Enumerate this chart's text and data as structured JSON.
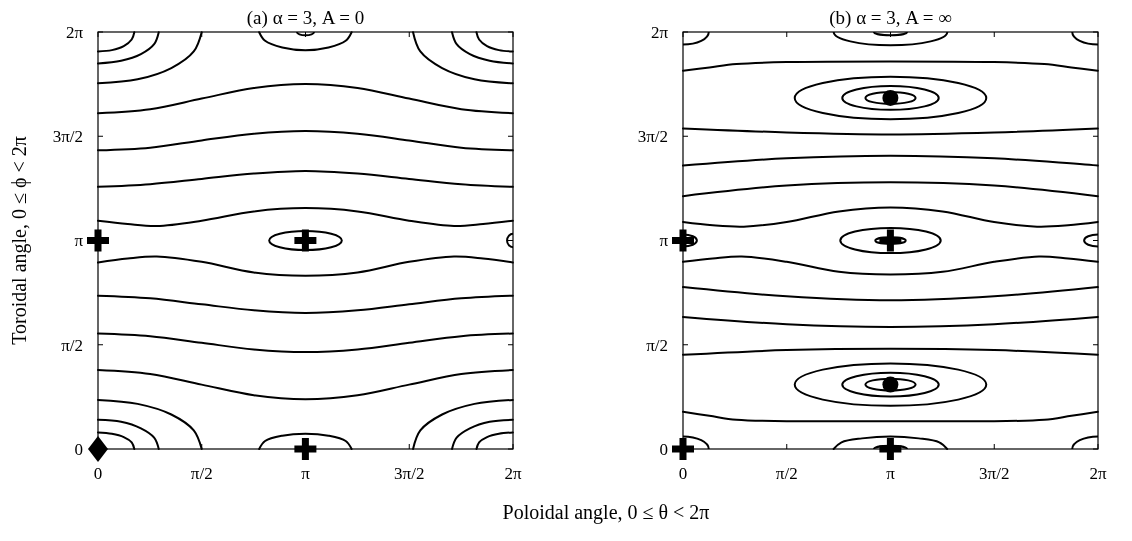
{
  "chart_data": [
    {
      "type": "line",
      "title": "(a) α = 3, A = 0",
      "ylabel": "Toroidal angle, 0 ≤ ϕ < 2π",
      "xlabel": "Poloidal angle, 0 ≤ θ < 2π",
      "xlim": [
        0,
        6.2832
      ],
      "ylim": [
        0,
        6.2832
      ],
      "xticks": [
        0,
        {
          "value": 1.5708,
          "label": "π/2"
        },
        {
          "value": 3.1416,
          "label": "π"
        },
        {
          "value": 4.7124,
          "label": "3π/2"
        },
        {
          "value": 6.2832,
          "label": "2π"
        }
      ],
      "yticks": [
        0,
        {
          "value": 1.5708,
          "label": "π/2"
        },
        {
          "value": 3.1416,
          "label": "π"
        },
        {
          "value": 4.7124,
          "label": "3π/2"
        },
        {
          "value": 6.2832,
          "label": "2π"
        }
      ],
      "line_style": "solid",
      "series": [
        {
          "color": "#000000",
          "x": [
            0,
            0.79,
            1.57,
            2.36,
            3.14,
            3.93,
            4.71,
            5.5,
            6.28
          ],
          "values": [
            5.06,
            5.12,
            5.28,
            5.44,
            5.5,
            5.44,
            5.28,
            5.12,
            5.06
          ]
        },
        {
          "color": "#000000",
          "x": [
            0,
            0.79,
            1.57,
            2.36,
            3.14,
            3.93,
            4.71,
            5.5,
            6.28
          ],
          "values": [
            4.5,
            4.54,
            4.65,
            4.75,
            4.79,
            4.75,
            4.65,
            4.54,
            4.5
          ]
        },
        {
          "color": "#000000",
          "x": [
            0,
            0.79,
            1.57,
            2.36,
            3.14,
            3.93,
            4.71,
            5.5,
            6.28
          ],
          "values": [
            3.95,
            3.99,
            4.07,
            4.15,
            4.19,
            4.15,
            4.07,
            3.99,
            3.95
          ]
        },
        {
          "color": "#000000",
          "x": [
            0,
            0.45,
            0.89,
            1.57,
            2.36,
            3.14,
            3.93,
            4.71,
            5.39,
            5.83,
            6.28
          ],
          "values": [
            3.44,
            3.39,
            3.36,
            3.44,
            3.58,
            3.63,
            3.58,
            3.44,
            3.36,
            3.39,
            3.44
          ]
        },
        {
          "color": "#000000",
          "x": [
            0,
            0.45,
            0.89,
            1.57,
            2.36,
            3.14,
            3.93,
            4.71,
            5.39,
            5.83,
            6.28
          ],
          "values": [
            2.81,
            2.87,
            2.9,
            2.82,
            2.66,
            2.61,
            2.66,
            2.82,
            2.9,
            2.87,
            2.81
          ]
        },
        {
          "color": "#000000",
          "x": [
            0,
            0.79,
            1.57,
            2.36,
            3.14,
            3.93,
            4.71,
            5.5,
            6.28
          ],
          "values": [
            2.31,
            2.27,
            2.18,
            2.09,
            2.05,
            2.09,
            2.18,
            2.27,
            2.31
          ]
        },
        {
          "color": "#000000",
          "x": [
            0,
            0.79,
            1.57,
            2.36,
            3.14,
            3.93,
            4.71,
            5.5,
            6.28
          ],
          "values": [
            1.74,
            1.7,
            1.6,
            1.5,
            1.46,
            1.5,
            1.6,
            1.7,
            1.74
          ]
        },
        {
          "color": "#000000",
          "x": [
            0,
            0.79,
            1.57,
            2.36,
            3.14,
            3.93,
            4.71,
            5.5,
            6.28
          ],
          "values": [
            1.19,
            1.13,
            0.97,
            0.81,
            0.75,
            0.81,
            0.97,
            1.13,
            1.19
          ]
        },
        {
          "color": "#000000",
          "x": [
            0,
            0.6,
            1.11,
            1.45,
            1.57
          ],
          "values": [
            5.51,
            5.57,
            5.74,
            5.99,
            6.28
          ]
        },
        {
          "color": "#000000",
          "x": [
            0,
            0.35,
            0.65,
            0.85,
            0.92
          ],
          "values": [
            5.81,
            5.85,
            5.95,
            6.1,
            6.28
          ]
        },
        {
          "color": "#000000",
          "x": [
            0,
            0.21,
            0.39,
            0.51,
            0.55
          ],
          "values": [
            5.99,
            6.01,
            6.07,
            6.17,
            6.28
          ]
        },
        {
          "color": "#000000",
          "x": [
            4.77,
            4.88,
            5.21,
            5.7,
            6.28
          ],
          "values": [
            6.28,
            5.99,
            5.74,
            5.57,
            5.51
          ]
        },
        {
          "color": "#000000",
          "x": [
            5.36,
            5.43,
            5.63,
            5.93,
            6.28
          ],
          "values": [
            6.28,
            6.1,
            5.95,
            5.85,
            5.81
          ]
        },
        {
          "color": "#000000",
          "x": [
            5.73,
            5.77,
            5.89,
            6.07,
            6.28
          ],
          "values": [
            6.28,
            6.17,
            6.07,
            6.01,
            5.99
          ]
        },
        {
          "color": "#000000",
          "x": [
            0,
            0.6,
            1.11,
            1.45,
            1.57
          ],
          "values": [
            0.74,
            0.68,
            0.52,
            0.28,
            0
          ]
        },
        {
          "color": "#000000",
          "x": [
            0,
            0.35,
            0.65,
            0.85,
            0.92
          ],
          "values": [
            0.44,
            0.41,
            0.31,
            0.17,
            0
          ]
        },
        {
          "color": "#000000",
          "x": [
            0,
            0.21,
            0.39,
            0.51,
            0.55
          ],
          "values": [
            0.25,
            0.23,
            0.18,
            0.1,
            0
          ]
        },
        {
          "color": "#000000",
          "x": [
            4.77,
            4.88,
            5.21,
            5.7,
            6.28
          ],
          "values": [
            0,
            0.28,
            0.52,
            0.68,
            0.74
          ]
        },
        {
          "color": "#000000",
          "x": [
            5.36,
            5.43,
            5.63,
            5.93,
            6.28
          ],
          "values": [
            0,
            0.17,
            0.31,
            0.41,
            0.44
          ]
        },
        {
          "color": "#000000",
          "x": [
            5.73,
            5.77,
            5.89,
            6.07,
            6.28
          ],
          "values": [
            0,
            0.1,
            0.18,
            0.23,
            0.25
          ]
        },
        {
          "color": "#000000",
          "x": [
            2.44,
            2.53,
            2.79,
            3.14,
            3.49,
            3.75,
            3.84
          ],
          "values": [
            6.28,
            6.15,
            6.05,
            6.01,
            6.05,
            6.15,
            6.28
          ]
        },
        {
          "color": "#000000",
          "x": [
            2.44,
            2.53,
            2.79,
            3.14,
            3.49,
            3.75,
            3.84
          ],
          "values": [
            0,
            0.12,
            0.2,
            0.23,
            0.2,
            0.12,
            0
          ]
        },
        {
          "type": "scatter",
          "color": "#000000",
          "marker": "cross",
          "x": [
            0,
            3.14,
            3.14
          ],
          "values": [
            3.14,
            3.14,
            0
          ]
        },
        {
          "type": "scatter",
          "color": "#000000",
          "marker": "diamond",
          "x": [
            0
          ],
          "values": [
            0
          ]
        }
      ]
    },
    {
      "type": "line",
      "title": "(b) α = 3, A = ∞",
      "xlim": [
        0,
        6.2832
      ],
      "ylim": [
        0,
        6.2832
      ],
      "xticks": [
        0,
        {
          "value": 1.5708,
          "label": "π/2"
        },
        {
          "value": 3.1416,
          "label": "π"
        },
        {
          "value": 4.7124,
          "label": "3π/2"
        },
        {
          "value": 6.2832,
          "label": "2π"
        }
      ],
      "yticks": [
        0,
        {
          "value": 1.5708,
          "label": "π/2"
        },
        {
          "value": 3.1416,
          "label": "π"
        },
        {
          "value": 4.7124,
          "label": "3π/2"
        },
        {
          "value": 6.2832,
          "label": "2π"
        }
      ],
      "line_style": "solid",
      "series": [
        {
          "color": "#000000",
          "x": [
            0,
            0.4,
            0.81,
            1.57,
            3.14,
            4.71,
            5.47,
            5.88,
            6.28
          ],
          "values": [
            5.7,
            5.75,
            5.8,
            5.83,
            5.84,
            5.83,
            5.8,
            5.75,
            5.7
          ]
        },
        {
          "color": "#000000",
          "x": [
            0,
            1.57,
            3.14,
            4.71,
            6.28
          ],
          "values": [
            4.83,
            4.77,
            4.74,
            4.77,
            4.83
          ]
        },
        {
          "color": "#000000",
          "x": [
            0,
            1.57,
            3.14,
            4.71,
            6.28
          ],
          "values": [
            4.27,
            4.38,
            4.42,
            4.38,
            4.27
          ]
        },
        {
          "color": "#000000",
          "x": [
            0,
            1.57,
            3.14,
            4.71,
            6.28
          ],
          "values": [
            3.81,
            3.97,
            4.02,
            3.97,
            3.81
          ]
        },
        {
          "color": "#000000",
          "x": [
            0,
            0.45,
            0.92,
            1.57,
            2.36,
            3.14,
            3.93,
            4.71,
            5.36,
            5.83,
            6.28
          ],
          "values": [
            3.42,
            3.37,
            3.35,
            3.42,
            3.58,
            3.64,
            3.58,
            3.42,
            3.35,
            3.37,
            3.42
          ]
        },
        {
          "color": "#000000",
          "x": [
            0,
            0.45,
            0.89,
            1.57,
            2.36,
            3.14,
            3.93,
            4.71,
            5.39,
            5.83,
            6.28
          ],
          "values": [
            2.82,
            2.87,
            2.9,
            2.82,
            2.67,
            2.63,
            2.67,
            2.82,
            2.9,
            2.87,
            2.82
          ]
        },
        {
          "color": "#000000",
          "x": [
            0,
            1.57,
            3.14,
            4.71,
            6.28
          ],
          "values": [
            2.44,
            2.3,
            2.24,
            2.3,
            2.44
          ]
        },
        {
          "color": "#000000",
          "x": [
            0,
            1.57,
            3.14,
            4.71,
            6.28
          ],
          "values": [
            1.99,
            1.88,
            1.84,
            1.88,
            1.99
          ]
        },
        {
          "color": "#000000",
          "x": [
            0,
            1.57,
            3.14,
            4.71,
            6.28
          ],
          "values": [
            1.42,
            1.49,
            1.51,
            1.49,
            1.42
          ]
        },
        {
          "color": "#000000",
          "x": [
            0,
            0.4,
            0.81,
            1.57,
            3.14,
            4.71,
            5.47,
            5.88,
            6.28
          ],
          "values": [
            0.56,
            0.5,
            0.44,
            0.42,
            0.42,
            0.42,
            0.44,
            0.5,
            0.56
          ]
        },
        {
          "color": "#000000",
          "x": [
            2.28,
            2.4,
            2.71,
            3.14,
            3.57,
            3.88,
            4
          ],
          "values": [
            0,
            0.1,
            0.16,
            0.19,
            0.16,
            0.1,
            0
          ]
        },
        {
          "type": "scatter",
          "color": "#000000",
          "marker": "cross",
          "x": [
            0,
            3.14,
            0,
            3.14
          ],
          "values": [
            3.14,
            3.14,
            0,
            0
          ]
        },
        {
          "type": "scatter",
          "color": "#000000",
          "marker": "circle",
          "x": [
            3.14,
            3.14
          ],
          "values": [
            5.29,
            0.97
          ]
        }
      ]
    }
  ]
}
